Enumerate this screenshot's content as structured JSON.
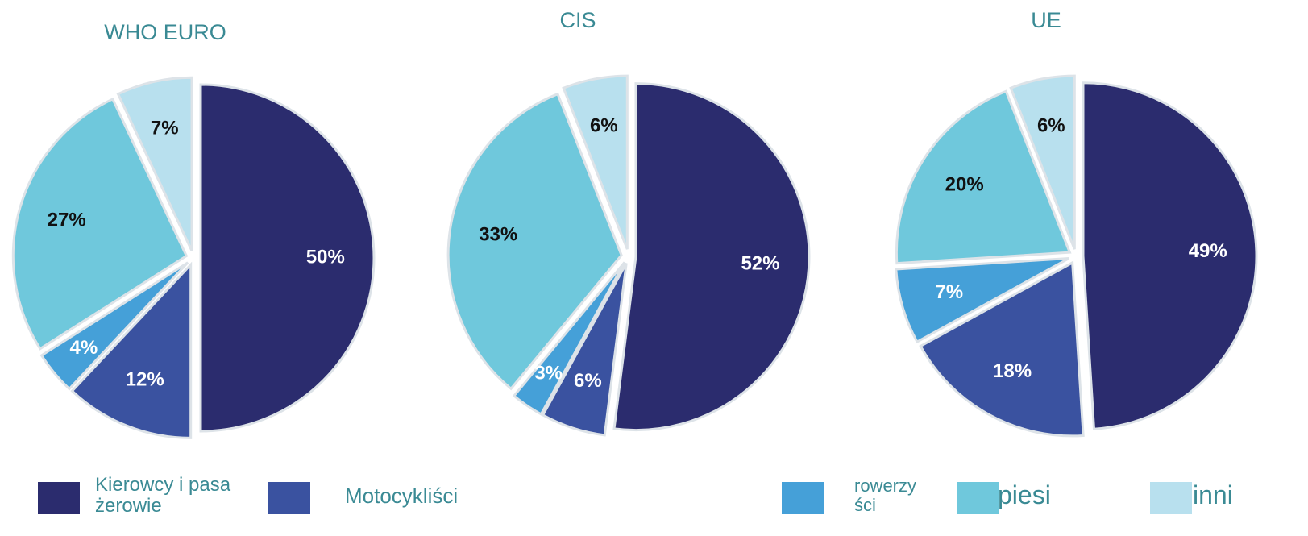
{
  "chart_data": [
    {
      "type": "pie",
      "title": "WHO EURO",
      "categories": [
        "Kierowcy i pasażerowie",
        "Motocykliści",
        "rowerzyści",
        "piesi",
        "inni"
      ],
      "values": [
        50,
        12,
        4,
        27,
        7
      ],
      "value_labels": [
        "50%",
        "12%",
        "4%",
        "27%",
        "7%"
      ],
      "colors": [
        "#2b2c6e",
        "#3a52a0",
        "#45a0d8",
        "#6fc8dc",
        "#b8e0ee"
      ]
    },
    {
      "type": "pie",
      "title": "CIS",
      "categories": [
        "Kierowcy i pasażerowie",
        "Motocykliści",
        "rowerzyści",
        "piesi",
        "inni"
      ],
      "values": [
        52,
        6,
        3,
        33,
        6
      ],
      "value_labels": [
        "52%",
        "6%",
        "3%",
        "33%",
        "6%"
      ],
      "colors": [
        "#2b2c6e",
        "#3a52a0",
        "#45a0d8",
        "#6fc8dc",
        "#b8e0ee"
      ]
    },
    {
      "type": "pie",
      "title": "UE",
      "categories": [
        "Kierowcy i pasażerowie",
        "Motocykliści",
        "rowerzyści",
        "piesi",
        "inni"
      ],
      "values": [
        49,
        18,
        7,
        20,
        6
      ],
      "value_labels": [
        "49%",
        "18%",
        "7%",
        "20%",
        "6%"
      ],
      "colors": [
        "#2b2c6e",
        "#3a52a0",
        "#45a0d8",
        "#6fc8dc",
        "#b8e0ee"
      ]
    }
  ]
}
